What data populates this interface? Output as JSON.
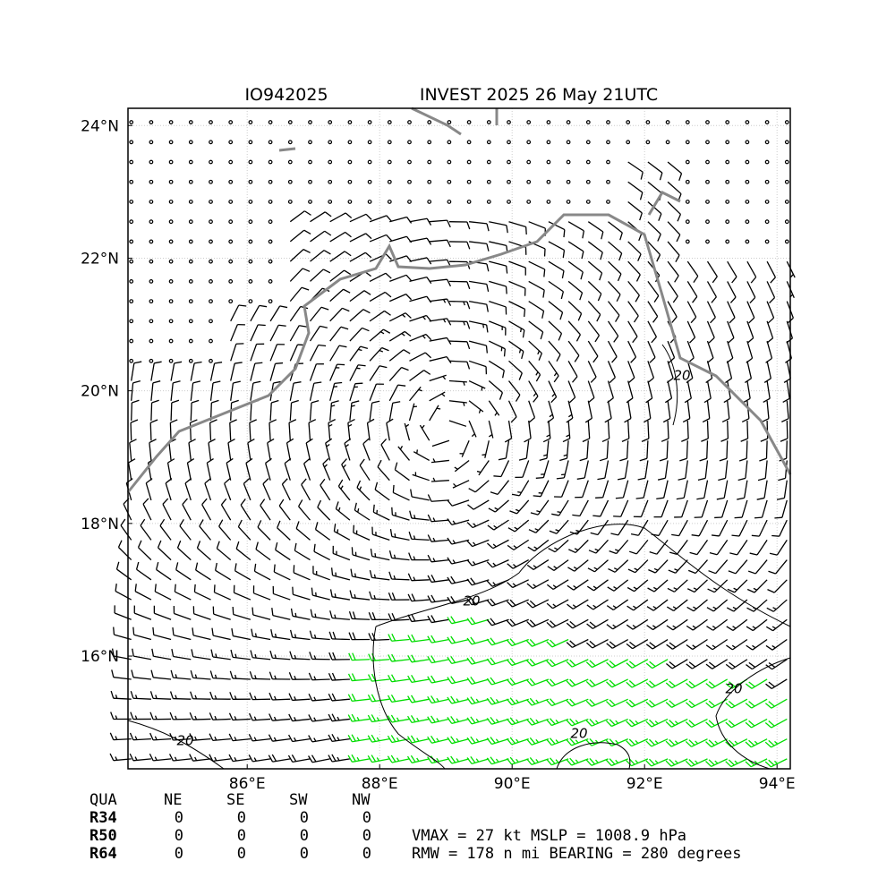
{
  "header": {
    "storm_id": "IO942025",
    "title": "INVEST 2025 26 May 21UTC"
  },
  "map": {
    "xlim": [
      84.2,
      94.2
    ],
    "ylim": [
      14.3,
      24.26
    ],
    "xticks": [
      {
        "value": 86,
        "label": "86°E"
      },
      {
        "value": 88,
        "label": "88°E"
      },
      {
        "value": 90,
        "label": "90°E"
      },
      {
        "value": 92,
        "label": "92°E"
      },
      {
        "value": 94,
        "label": "94°E"
      }
    ],
    "yticks": [
      {
        "value": 16,
        "label": "16°N"
      },
      {
        "value": 18,
        "label": "18°N"
      },
      {
        "value": 20,
        "label": "20°N"
      },
      {
        "value": 22,
        "label": "22°N"
      },
      {
        "value": 24,
        "label": "24°N"
      }
    ],
    "contour_labels": [
      "20",
      "20",
      "20",
      "20",
      "20"
    ]
  },
  "table": {
    "header": [
      "QUA",
      "NE",
      "SE",
      "SW",
      "NW"
    ],
    "rows": [
      [
        "R34",
        "0",
        "0",
        "0",
        "0"
      ],
      [
        "R50",
        "0",
        "0",
        "0",
        "0"
      ],
      [
        "R64",
        "0",
        "0",
        "0",
        "0"
      ]
    ]
  },
  "info": [
    "VMAX =  27 kt MSLP = 1008.9 hPa",
    "RMW = 178 n mi BEARING = 280 degrees"
  ]
}
